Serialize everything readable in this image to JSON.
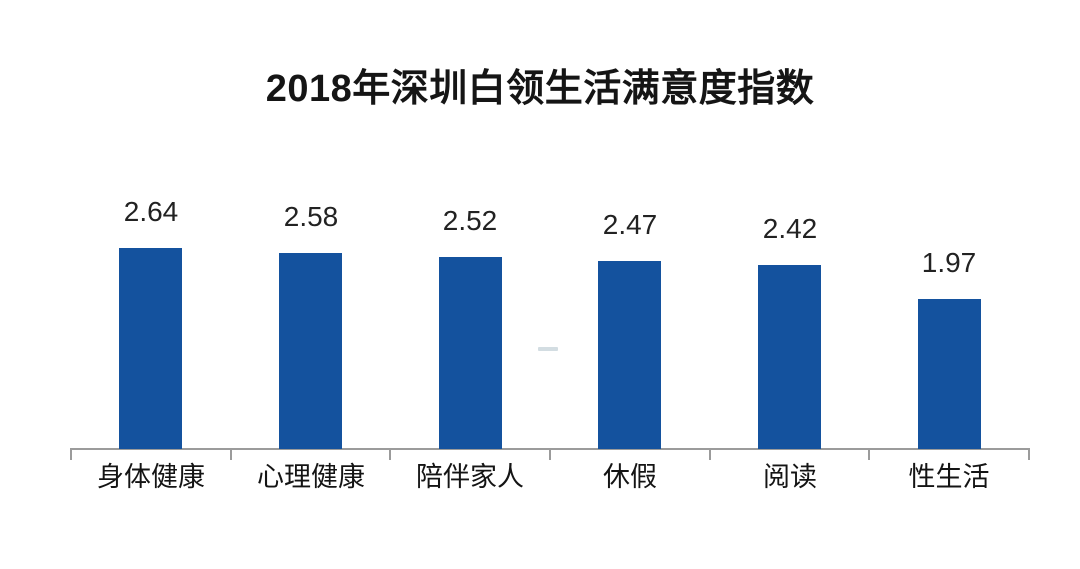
{
  "page": {
    "background": "#ffffff"
  },
  "chart_data": {
    "type": "bar",
    "title": "2018年深圳白领生活满意度指数",
    "categories": [
      "身体健康",
      "心理健康",
      "陪伴家人",
      "休假",
      "阅读",
      "性生活"
    ],
    "values": [
      2.64,
      2.58,
      2.52,
      2.47,
      2.42,
      1.97
    ],
    "xlabel": "",
    "ylabel": "",
    "ylim": [
      0,
      3
    ],
    "grid": false,
    "legend": false,
    "data_labels": true,
    "bar_color": "#14529e",
    "axis_color": "#9b9b9b",
    "title_color": "#151515",
    "label_color": "#222222"
  }
}
